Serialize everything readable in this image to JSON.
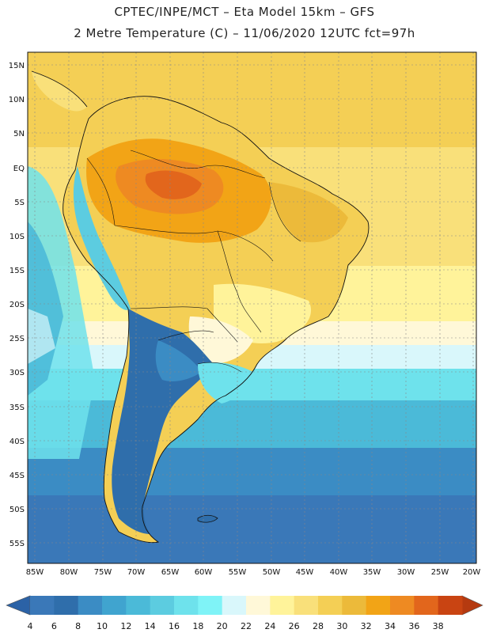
{
  "header": {
    "line1": "CPTEC/INPE/MCT –  Eta Model 15km – GFS",
    "line2": "2 Metre Temperature (C) – 11/06/2020 12UTC fct=97h"
  },
  "map": {
    "lat_labels": [
      "15N",
      "10N",
      "5N",
      "EQ",
      "5S",
      "10S",
      "15S",
      "20S",
      "25S",
      "30S",
      "35S",
      "40S",
      "45S",
      "50S",
      "55S"
    ],
    "lon_labels": [
      "85W",
      "80W",
      "75W",
      "70W",
      "65W",
      "60W",
      "55W",
      "50W",
      "45W",
      "40W",
      "35W",
      "30W",
      "25W",
      "20W"
    ],
    "region": "South America"
  },
  "colorbar": {
    "ticks": [
      "4",
      "6",
      "8",
      "10",
      "12",
      "14",
      "16",
      "18",
      "20",
      "22",
      "24",
      "26",
      "28",
      "30",
      "32",
      "34",
      "36",
      "38"
    ],
    "colors": [
      "#3a78b8",
      "#2f6eab",
      "#3b8cc4",
      "#40a4cf",
      "#4bbad8",
      "#5ccce0",
      "#6ee2ec",
      "#7ff3f7",
      "#d9f7fb",
      "#fff8d8",
      "#fff39a",
      "#f9e07a",
      "#f4cf55",
      "#ecba3a",
      "#f2a416",
      "#ee8a22",
      "#e2661c",
      "#c94412"
    ],
    "left_arrow_color": "#2b62a6",
    "right_arrow_color": "#b53a10"
  }
}
